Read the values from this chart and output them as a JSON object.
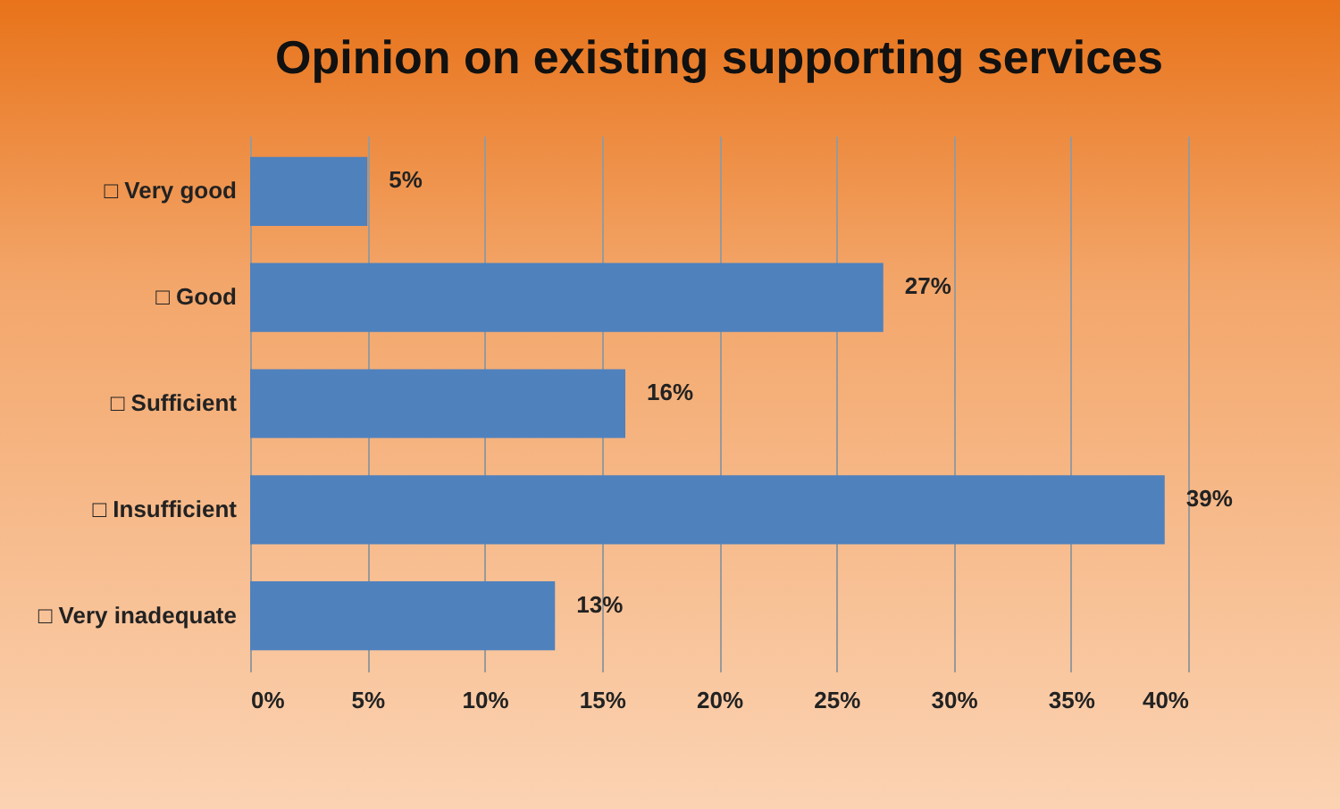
{
  "chart_data": {
    "type": "bar",
    "orientation": "horizontal",
    "title": "Opinion on existing supporting services",
    "categories": [
      "□ Very good",
      "□ Good",
      "□ Sufficient",
      "□ Insufficient",
      "□ Very inadequate"
    ],
    "values": [
      5,
      27,
      16,
      39,
      13
    ],
    "value_labels": [
      "5%",
      "27%",
      "16%",
      "39%",
      "13%"
    ],
    "color": "#4f81bd",
    "xlim": [
      0,
      40
    ],
    "xticks": [
      {
        "value": 0,
        "label": "0%"
      },
      {
        "value": 5,
        "label": "5%"
      },
      {
        "value": 10,
        "label": "10%"
      },
      {
        "value": 15,
        "label": "15%"
      },
      {
        "value": 20,
        "label": "20%"
      },
      {
        "value": 25,
        "label": "25%"
      },
      {
        "value": 30,
        "label": "30%"
      },
      {
        "value": 35,
        "label": "35%"
      },
      {
        "value": 40,
        "label": "40%"
      }
    ],
    "grid": "x"
  }
}
